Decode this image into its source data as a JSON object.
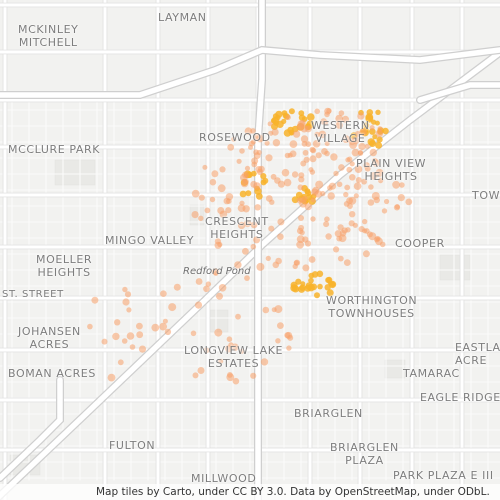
{
  "map": {
    "attribution": "Map tiles by Carto, under CC BY 3.0. Data by OpenStreetMap, under ODbL.",
    "colors": {
      "background": "#f2f2f0",
      "road": "#ffffff",
      "highway_casing": "#d6d6d6",
      "block_outline": "#e4e4e2",
      "parcel": "#e9e9e6",
      "incident_light": "#f7a06a",
      "incident_dense": "#f8b32a"
    },
    "neighborhoods": [
      {
        "id": "layman",
        "name": "LAYMAN"
      },
      {
        "id": "mckinley-mitchell",
        "name": "MCKINLEY\nMITCHELL"
      },
      {
        "id": "rosewood",
        "name": "ROSEWOOD"
      },
      {
        "id": "western-village",
        "name": "WESTERN\nVILLAGE"
      },
      {
        "id": "mcclure-park",
        "name": "MCCLURE PARK"
      },
      {
        "id": "plain-view-heights",
        "name": "PLAIN VIEW\nHEIGHTS"
      },
      {
        "id": "town",
        "name": "TOWN"
      },
      {
        "id": "crescent-heights",
        "name": "CRESCENT\nHEIGHTS"
      },
      {
        "id": "mingo-valley",
        "name": "MINGO VALLEY"
      },
      {
        "id": "cooper",
        "name": "COOPER"
      },
      {
        "id": "moeller-heights",
        "name": "MOELLER\nHEIGHTS"
      },
      {
        "id": "street",
        "name": "ST. STREET"
      },
      {
        "id": "worthington-townhouses",
        "name": "WORTHINGTON\nTOWNHOUSES"
      },
      {
        "id": "johansen-acres",
        "name": "JOHANSEN\nACRES"
      },
      {
        "id": "longview-lake-estates",
        "name": "LONGVIEW LAKE\nESTATES"
      },
      {
        "id": "eastland-acres",
        "name": "EASTLA\nACRE"
      },
      {
        "id": "boman-acres",
        "name": "BOMAN ACRES"
      },
      {
        "id": "tamarac",
        "name": "TAMARAC"
      },
      {
        "id": "eagle-ridge",
        "name": "EAGLE RIDGE"
      },
      {
        "id": "briarglen",
        "name": "BRIARGLEN"
      },
      {
        "id": "fulton",
        "name": "FULTON"
      },
      {
        "id": "briarglen-plaza",
        "name": "BRIARGLEN\nPLAZA"
      },
      {
        "id": "millwood",
        "name": "MILLWOOD"
      },
      {
        "id": "park-plaza",
        "name": "PARK PLAZA E III"
      }
    ],
    "water_labels": [
      {
        "id": "redford-pond",
        "name": "Redford Pond"
      }
    ]
  }
}
